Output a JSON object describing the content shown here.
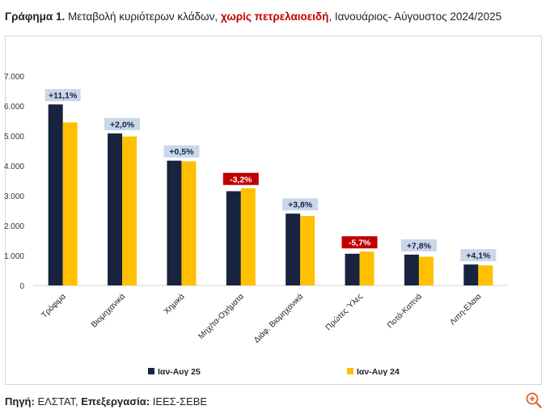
{
  "title": {
    "prefix": "Γράφημα 1.",
    "part1": " Μεταβολή κυριότερων κλάδων, ",
    "highlight": "χωρίς πετρελαιοειδή",
    "part2": ", Ιανουάριος- Αύγουστος 2024/2025"
  },
  "source": {
    "label1": "Πηγή:",
    "value1": " ΕΛΣΤΑΤ, ",
    "label2": "Επεξεργασία:",
    "value2": " ΙΕΕΣ-ΣΕΒΕ"
  },
  "zoom_icon": "zoom-in-icon",
  "colors": {
    "series1": "#17233f",
    "series2": "#ffc000",
    "label_positive_bg": "#c9d7ea",
    "label_negative_bg": "#c00000",
    "accent_red": "#c00000"
  },
  "chart_data": {
    "type": "bar",
    "categories": [
      "Τρόφιμα",
      "Βιομηχανικά",
      "Χημικά",
      "Μηχ/τα-Οχήματα",
      "Διάφ. Βιομηχανικά",
      "Πρώτες Ύλες",
      "Ποτά-Καπνά",
      "Λιπη-Ελαια"
    ],
    "series": [
      {
        "name": "Ιαν-Αυγ 25",
        "values": [
          6050,
          5080,
          4170,
          3150,
          2400,
          1060,
          1030,
          700
        ]
      },
      {
        "name": "Ιαν-Αυγ 24",
        "values": [
          5450,
          4980,
          4150,
          3250,
          2320,
          1130,
          960,
          670
        ]
      }
    ],
    "change_labels": [
      "+11,1%",
      "+2,0%",
      "+0,5%",
      "-3,2%",
      "+3,8%",
      "-5,7%",
      "+7,8%",
      "+4,1%"
    ],
    "change_negative": [
      false,
      false,
      false,
      true,
      false,
      true,
      false,
      false
    ],
    "y_ticks": [
      "0",
      "1.000",
      "2.000",
      "3.000",
      "4.000",
      "5.000",
      "6.000",
      "7.000"
    ],
    "ylim": [
      0,
      7000
    ],
    "grid": false,
    "legend_position": "bottom"
  }
}
